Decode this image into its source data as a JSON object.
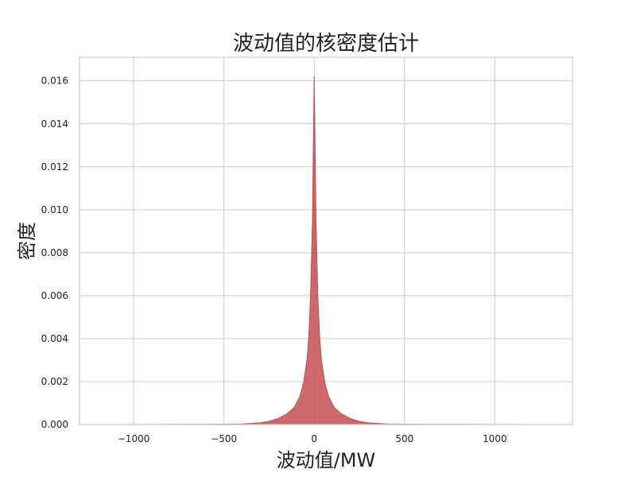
{
  "chart_data": {
    "type": "area",
    "title": "波动值的核密度估计",
    "xlabel": "波动值/MW",
    "ylabel": "密度",
    "xlim": [
      -1300,
      1430
    ],
    "ylim": [
      0,
      0.0171
    ],
    "grid": true,
    "fill_color": "#c44e52",
    "x_ticks": [
      -1000,
      -500,
      0,
      500,
      1000
    ],
    "x_tick_labels": [
      "−1000",
      "−500",
      "0",
      "500",
      "1000"
    ],
    "y_ticks": [
      0.0,
      0.002,
      0.004,
      0.006,
      0.008,
      0.01,
      0.012,
      0.014,
      0.016
    ],
    "y_tick_labels": [
      "0.000",
      "0.002",
      "0.004",
      "0.006",
      "0.008",
      "0.010",
      "0.012",
      "0.014",
      "0.016"
    ],
    "x": [
      -1175,
      -600,
      -400,
      -300,
      -250,
      -200,
      -150,
      -110,
      -80,
      -60,
      -40,
      -30,
      -20,
      -10,
      0,
      10,
      20,
      30,
      40,
      60,
      80,
      110,
      150,
      200,
      250,
      300,
      400,
      600,
      1300
    ],
    "y": [
      0.0,
      1e-05,
      3e-05,
      8e-05,
      0.00015,
      0.00028,
      0.0005,
      0.0008,
      0.0013,
      0.0019,
      0.003,
      0.0041,
      0.006,
      0.0095,
      0.0162,
      0.0095,
      0.006,
      0.0041,
      0.003,
      0.0019,
      0.0013,
      0.0008,
      0.0005,
      0.00028,
      0.00015,
      8e-05,
      3e-05,
      1e-05,
      0.0
    ]
  }
}
